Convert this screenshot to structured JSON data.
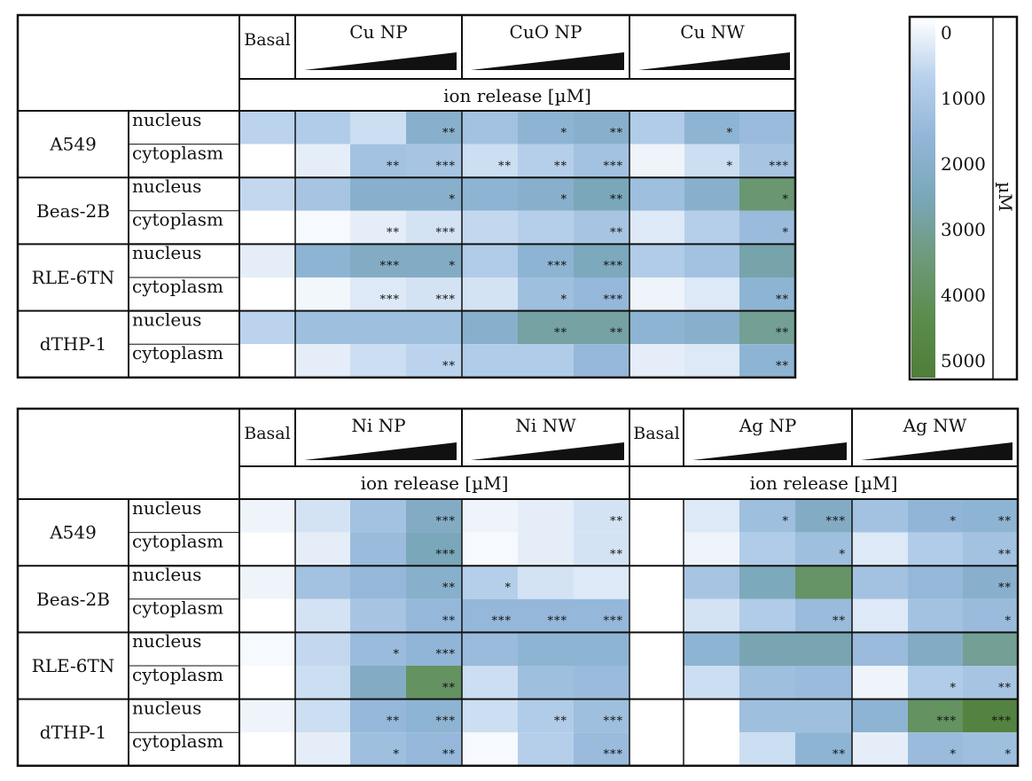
{
  "chart_data": [
    {
      "type": "heatmap",
      "id": "top",
      "unit_header": "ion release [µM]",
      "groups": [
        {
          "label": "Basal"
        },
        {
          "label": "Cu NP"
        },
        {
          "label": "CuO NP"
        },
        {
          "label": "Cu NW"
        }
      ],
      "rows": [
        {
          "cell": "A549",
          "compartment": "nucleus",
          "values": [
            800,
            1000,
            600,
            2000,
            1300,
            1800,
            2000,
            1000,
            1800,
            1500
          ],
          "stars": [
            "",
            "",
            "",
            "**",
            "",
            "*",
            "**",
            "",
            "*",
            ""
          ]
        },
        {
          "cell": "A549",
          "compartment": "cytoplasm",
          "values": [
            0,
            300,
            1300,
            1200,
            600,
            900,
            1300,
            200,
            600,
            1200
          ],
          "stars": [
            "",
            "",
            "**",
            "***",
            "**",
            "**",
            "***",
            "",
            "*",
            "***"
          ]
        },
        {
          "cell": "Beas-2B",
          "compartment": "nucleus",
          "values": [
            700,
            1200,
            2000,
            2000,
            1800,
            2000,
            2500,
            1400,
            2000,
            3500
          ],
          "stars": [
            "",
            "",
            "",
            "*",
            "",
            "*",
            "**",
            "",
            "",
            "*"
          ]
        },
        {
          "cell": "Beas-2B",
          "compartment": "cytoplasm",
          "values": [
            0,
            100,
            300,
            500,
            700,
            900,
            1200,
            400,
            900,
            1500
          ],
          "stars": [
            "",
            "",
            "**",
            "***",
            "",
            "",
            "**",
            "",
            "",
            "*"
          ]
        },
        {
          "cell": "RLE-6TN",
          "compartment": "nucleus",
          "values": [
            300,
            1800,
            2200,
            2200,
            1000,
            1800,
            2400,
            1000,
            1300,
            2700
          ],
          "stars": [
            "",
            "",
            "***",
            "*",
            "",
            "***",
            "***",
            "",
            "",
            ""
          ]
        },
        {
          "cell": "RLE-6TN",
          "compartment": "cytoplasm",
          "values": [
            0,
            150,
            400,
            500,
            500,
            1400,
            1600,
            200,
            400,
            1800
          ],
          "stars": [
            "",
            "",
            "***",
            "***",
            "",
            "*",
            "***",
            "",
            "",
            "**"
          ]
        },
        {
          "cell": "dTHP-1",
          "compartment": "nucleus",
          "values": [
            800,
            1400,
            1400,
            1400,
            2000,
            2800,
            2800,
            1800,
            2000,
            3000
          ],
          "stars": [
            "",
            "",
            "",
            "",
            "",
            "**",
            "**",
            "",
            "",
            "**"
          ]
        },
        {
          "cell": "dTHP-1",
          "compartment": "cytoplasm",
          "values": [
            0,
            300,
            600,
            800,
            1000,
            1000,
            1600,
            300,
            400,
            1800
          ],
          "stars": [
            "",
            "",
            "",
            "**",
            "",
            "",
            "",
            "",
            "",
            "**"
          ]
        }
      ]
    },
    {
      "type": "heatmap",
      "id": "bottom",
      "unit_header": "ion release [µM]",
      "groups": [
        {
          "label": "Basal"
        },
        {
          "label": "Ni NP"
        },
        {
          "label": "Ni NW"
        },
        {
          "label": "Basal"
        },
        {
          "label": "Ag NP"
        },
        {
          "label": "Ag NW"
        }
      ],
      "rows": [
        {
          "cell": "A549",
          "compartment": "nucleus",
          "values": [
            200,
            500,
            1300,
            2200,
            200,
            300,
            500,
            0,
            400,
            1400,
            2200,
            1300,
            1700,
            1800
          ],
          "stars": [
            "",
            "",
            "",
            "***",
            "",
            "",
            "**",
            "",
            "",
            "*",
            "***",
            "",
            "*",
            "**"
          ]
        },
        {
          "cell": "A549",
          "compartment": "cytoplasm",
          "values": [
            0,
            300,
            1500,
            2500,
            100,
            300,
            500,
            0,
            200,
            1000,
            1400,
            400,
            1000,
            1300
          ],
          "stars": [
            "",
            "",
            "",
            "***",
            "",
            "",
            "**",
            "",
            "",
            "",
            "*",
            "",
            "",
            "**"
          ]
        },
        {
          "cell": "Beas-2B",
          "compartment": "nucleus",
          "values": [
            200,
            1300,
            1600,
            2000,
            900,
            500,
            400,
            0,
            1200,
            2400,
            3700,
            1300,
            1600,
            2000
          ],
          "stars": [
            "",
            "",
            "",
            "**",
            "*",
            "",
            "",
            "",
            "",
            "",
            "",
            "",
            "",
            "**"
          ]
        },
        {
          "cell": "Beas-2B",
          "compartment": "cytoplasm",
          "values": [
            0,
            500,
            1200,
            1600,
            1600,
            1600,
            1600,
            0,
            500,
            1000,
            1500,
            400,
            1300,
            1500
          ],
          "stars": [
            "",
            "",
            "",
            "**",
            "***",
            "***",
            "***",
            "",
            "",
            "",
            "**",
            "",
            "",
            "*"
          ]
        },
        {
          "cell": "RLE-6TN",
          "compartment": "nucleus",
          "values": [
            100,
            700,
            1500,
            1700,
            1500,
            1800,
            1800,
            0,
            1800,
            2600,
            2600,
            1500,
            2200,
            3000
          ],
          "stars": [
            "",
            "",
            "*",
            "***",
            "",
            "",
            "",
            "",
            "",
            "",
            "",
            "",
            "",
            ""
          ]
        },
        {
          "cell": "RLE-6TN",
          "compartment": "cytoplasm",
          "values": [
            0,
            600,
            2200,
            3800,
            600,
            1400,
            1500,
            0,
            600,
            1400,
            1500,
            200,
            1000,
            1200
          ],
          "stars": [
            "",
            "",
            "",
            "**",
            "",
            "",
            "",
            "",
            "",
            "",
            "",
            "",
            "*",
            "**"
          ]
        },
        {
          "cell": "dTHP-1",
          "compartment": "nucleus",
          "values": [
            200,
            600,
            1600,
            1800,
            600,
            1000,
            1400,
            0,
            0,
            1400,
            1400,
            1800,
            3800,
            4700
          ],
          "stars": [
            "",
            "",
            "**",
            "***",
            "",
            "**",
            "***",
            "",
            "",
            "",
            "",
            "",
            "***",
            "***"
          ]
        },
        {
          "cell": "dTHP-1",
          "compartment": "cytoplasm",
          "values": [
            0,
            300,
            1400,
            1600,
            100,
            900,
            1500,
            0,
            0,
            600,
            1800,
            300,
            1500,
            1400
          ],
          "stars": [
            "",
            "",
            "*",
            "**",
            "",
            "",
            "***",
            "",
            "",
            "",
            "**",
            "",
            "*",
            "*"
          ]
        }
      ]
    }
  ],
  "colorbar": {
    "ticks": [
      0,
      1000,
      2000,
      3000,
      4000,
      5000
    ],
    "range": [
      0,
      5000
    ],
    "label": "µM",
    "colors": [
      "#ffffff",
      "#b8d1ec",
      "#92b6d8",
      "#7aa7b9",
      "#6e9a7b",
      "#5c8c4d",
      "#4f7e3a"
    ]
  }
}
